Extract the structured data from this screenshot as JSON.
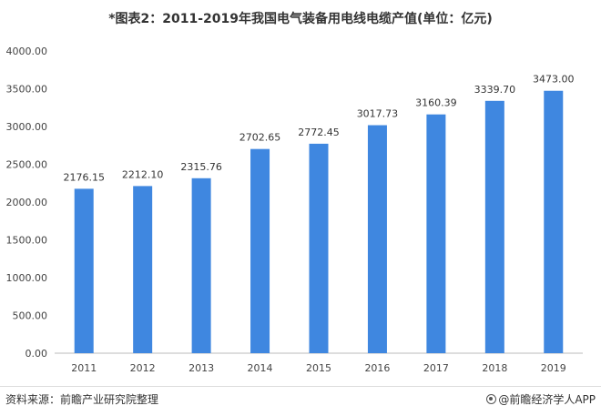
{
  "title": "*图表2：2011-2019年我国电气装备用电线电缆产值(单位：亿元)",
  "footer": {
    "source": "资料来源：前瞻产业研究院整理",
    "brand": "@前瞻经济学人APP"
  },
  "colors": {
    "bar": "#3f87e0",
    "axis": "#bbbbbb"
  },
  "chart_data": {
    "type": "bar",
    "categories": [
      "2011",
      "2012",
      "2013",
      "2014",
      "2015",
      "2016",
      "2017",
      "2018",
      "2019"
    ],
    "values": [
      2176.15,
      2212.1,
      2315.76,
      2702.65,
      2772.45,
      3017.73,
      3160.39,
      3339.7,
      3473.0
    ],
    "data_labels": [
      "2176.15",
      "2212.10",
      "2315.76",
      "2702.65",
      "2772.45",
      "3017.73",
      "3160.39",
      "3339.70",
      "3473.00"
    ],
    "yticks": [
      "0.00",
      "500.00",
      "1000.00",
      "1500.00",
      "2000.00",
      "2500.00",
      "3000.00",
      "3500.00",
      "4000.00"
    ],
    "ylim": [
      0,
      4000
    ],
    "grid": false,
    "legend": "none"
  }
}
